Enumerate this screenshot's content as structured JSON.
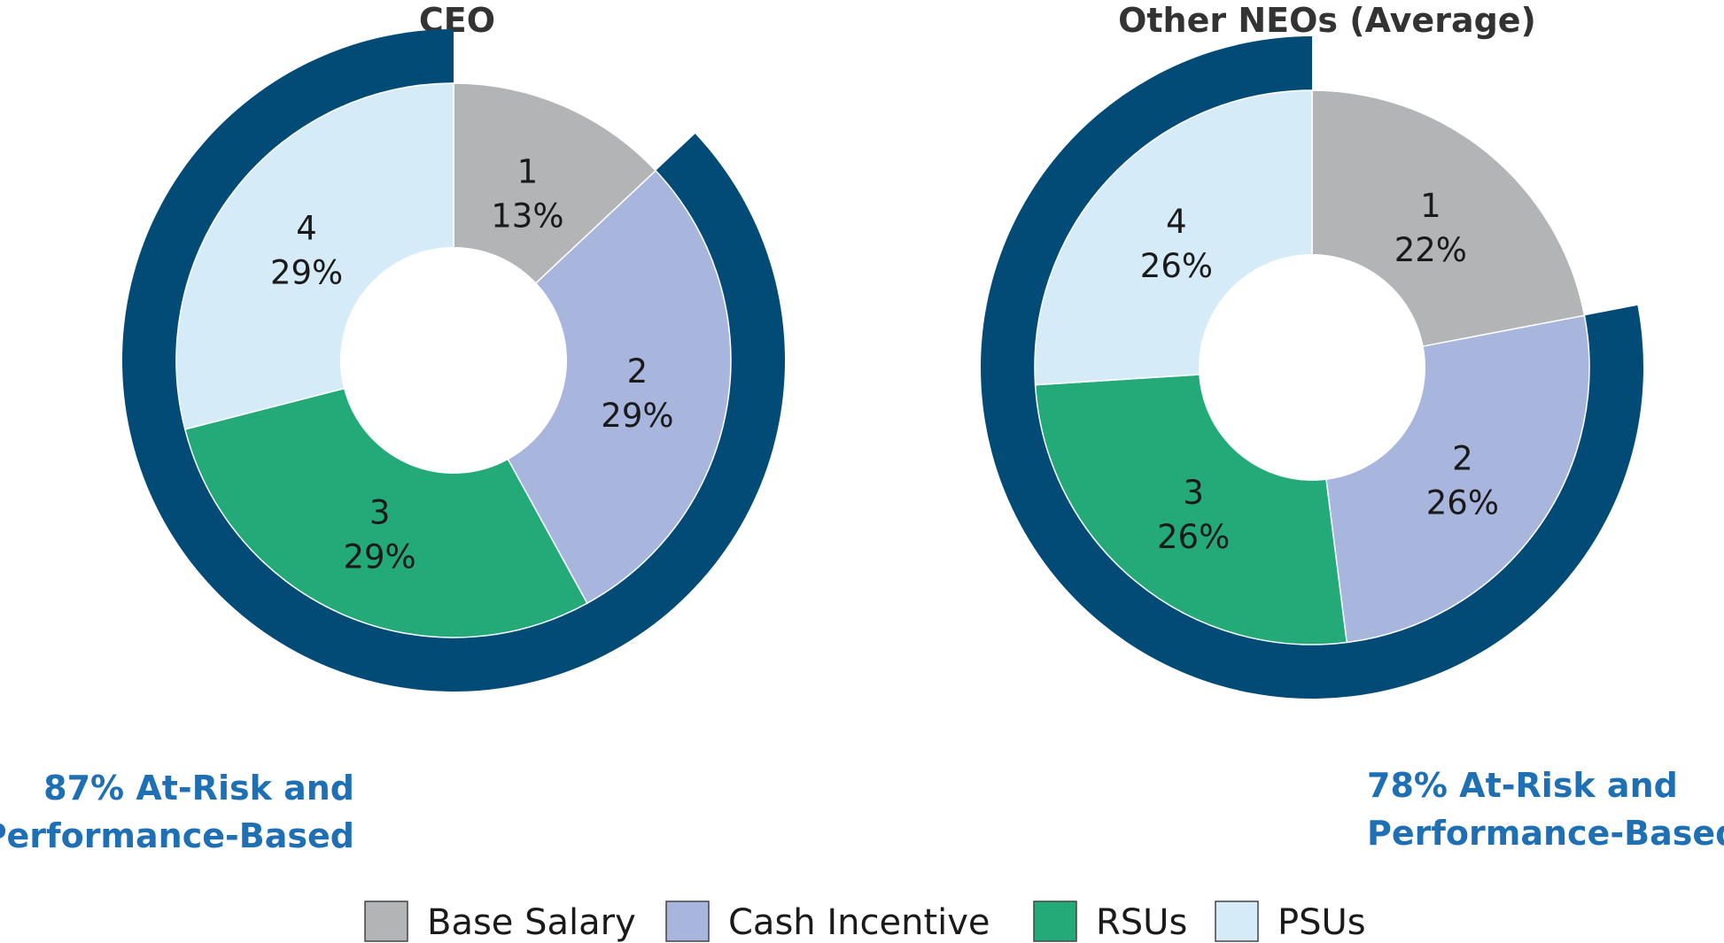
{
  "colors": {
    "base_salary": "#b2b4b6",
    "cash_incentive": "#a8b6de",
    "rsus": "#24aa79",
    "psus": "#d5ecf8",
    "at_risk_ring": "#034b77",
    "callout_text": "#1f6fb5",
    "slice_border": "#ffffff"
  },
  "legend": {
    "items": [
      {
        "label": "Base Salary",
        "color_key": "base_salary"
      },
      {
        "label": "Cash Incentive",
        "color_key": "cash_incentive"
      },
      {
        "label": "RSUs",
        "color_key": "rsus"
      },
      {
        "label": "PSUs",
        "color_key": "psus"
      }
    ]
  },
  "chart_data": [
    {
      "type": "pie",
      "variant": "donut-with-outer-arc",
      "title": "CEO",
      "categories": [
        "Base Salary",
        "Cash Incentive",
        "RSUs",
        "PSUs"
      ],
      "slice_numbers": [
        "1",
        "2",
        "3",
        "4"
      ],
      "values": [
        13,
        29,
        29,
        29
      ],
      "value_labels": [
        "13%",
        "29%",
        "29%",
        "29%"
      ],
      "outer_arc_value": 87,
      "outer_arc_categories": [
        "Cash Incentive",
        "RSUs",
        "PSUs"
      ],
      "callout_lines": [
        "87% At-Risk and",
        "Performance-Based"
      ],
      "callout_position": "bottom-left"
    },
    {
      "type": "pie",
      "variant": "donut-with-outer-arc",
      "title": "Other NEOs (Average)",
      "categories": [
        "Base Salary",
        "Cash Incentive",
        "RSUs",
        "PSUs"
      ],
      "slice_numbers": [
        "1",
        "2",
        "3",
        "4"
      ],
      "values": [
        22,
        26,
        26,
        26
      ],
      "value_labels": [
        "22%",
        "26%",
        "26%",
        "26%"
      ],
      "outer_arc_value": 78,
      "outer_arc_categories": [
        "Cash Incentive",
        "RSUs",
        "PSUs"
      ],
      "callout_lines": [
        "78% At-Risk and",
        "Performance-Based"
      ],
      "callout_position": "bottom-right"
    }
  ]
}
